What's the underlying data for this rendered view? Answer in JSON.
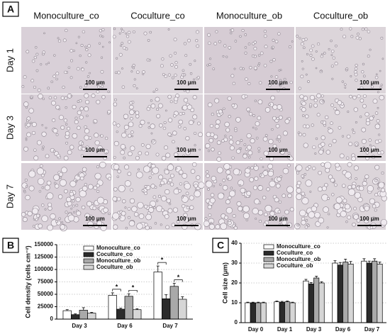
{
  "image_grid": {
    "panel": "A",
    "columns": [
      "Monoculture_co",
      "Coculture_co",
      "Monoculture_ob",
      "Coculture_ob"
    ],
    "rows": [
      "Day 1",
      "Day 3",
      "Day 7"
    ],
    "scale_bar": "100 μm"
  },
  "chart_data": [
    {
      "type": "bar",
      "panel": "B",
      "ylabel": "Cell density (cells cm⁻²)",
      "categories": [
        "Day 3",
        "Day 6",
        "Day 7"
      ],
      "series": [
        {
          "name": "Monoculture_co",
          "color": "#ffffff",
          "values": [
            17000,
            48000,
            95000
          ],
          "errors": [
            2000,
            5000,
            12000
          ]
        },
        {
          "name": "Coculture_co",
          "color": "#2b2b2b",
          "values": [
            9000,
            20000,
            41000
          ],
          "errors": [
            1500,
            2000,
            8000
          ]
        },
        {
          "name": "Monoculture_ob",
          "color": "#a9a9a9",
          "values": [
            18000,
            46000,
            66000
          ],
          "errors": [
            5000,
            5000,
            6000
          ]
        },
        {
          "name": "Coculture_ob",
          "color": "#d6d6d6",
          "values": [
            12000,
            19000,
            40000
          ],
          "errors": [
            1500,
            2000,
            5000
          ]
        }
      ],
      "annotations": [
        "*",
        "*",
        "*",
        "*"
      ],
      "ylim": [
        0,
        150000
      ],
      "yticks": [
        0,
        25000,
        50000,
        75000,
        100000,
        125000,
        150000
      ],
      "grid": true
    },
    {
      "type": "bar",
      "panel": "C",
      "ylabel": "Cell size (μm)",
      "categories": [
        "Day 0",
        "Day 1",
        "Day 3",
        "Day 6",
        "Day 7"
      ],
      "series": [
        {
          "name": "Monoculture_co",
          "color": "#ffffff",
          "values": [
            10,
            10.5,
            21,
            30,
            31
          ],
          "errors": [
            0.3,
            0.4,
            0.8,
            1.2,
            1.2
          ]
        },
        {
          "name": "Coculture_co",
          "color": "#2b2b2b",
          "values": [
            10,
            10.3,
            19.5,
            29,
            30
          ],
          "errors": [
            0.3,
            0.4,
            0.7,
            1.3,
            1
          ]
        },
        {
          "name": "Monoculture_ob",
          "color": "#a9a9a9",
          "values": [
            10,
            10.5,
            22.5,
            30.5,
            31
          ],
          "errors": [
            0.3,
            0.4,
            0.9,
            1.5,
            1.2
          ]
        },
        {
          "name": "Coculture_ob",
          "color": "#d6d6d6",
          "values": [
            10,
            10,
            20,
            29.5,
            29.5
          ],
          "errors": [
            0.3,
            0.3,
            0.6,
            1.3,
            1
          ]
        }
      ],
      "ylim": [
        0,
        40
      ],
      "yticks": [
        0,
        10,
        20,
        30,
        40
      ],
      "grid": true
    }
  ]
}
